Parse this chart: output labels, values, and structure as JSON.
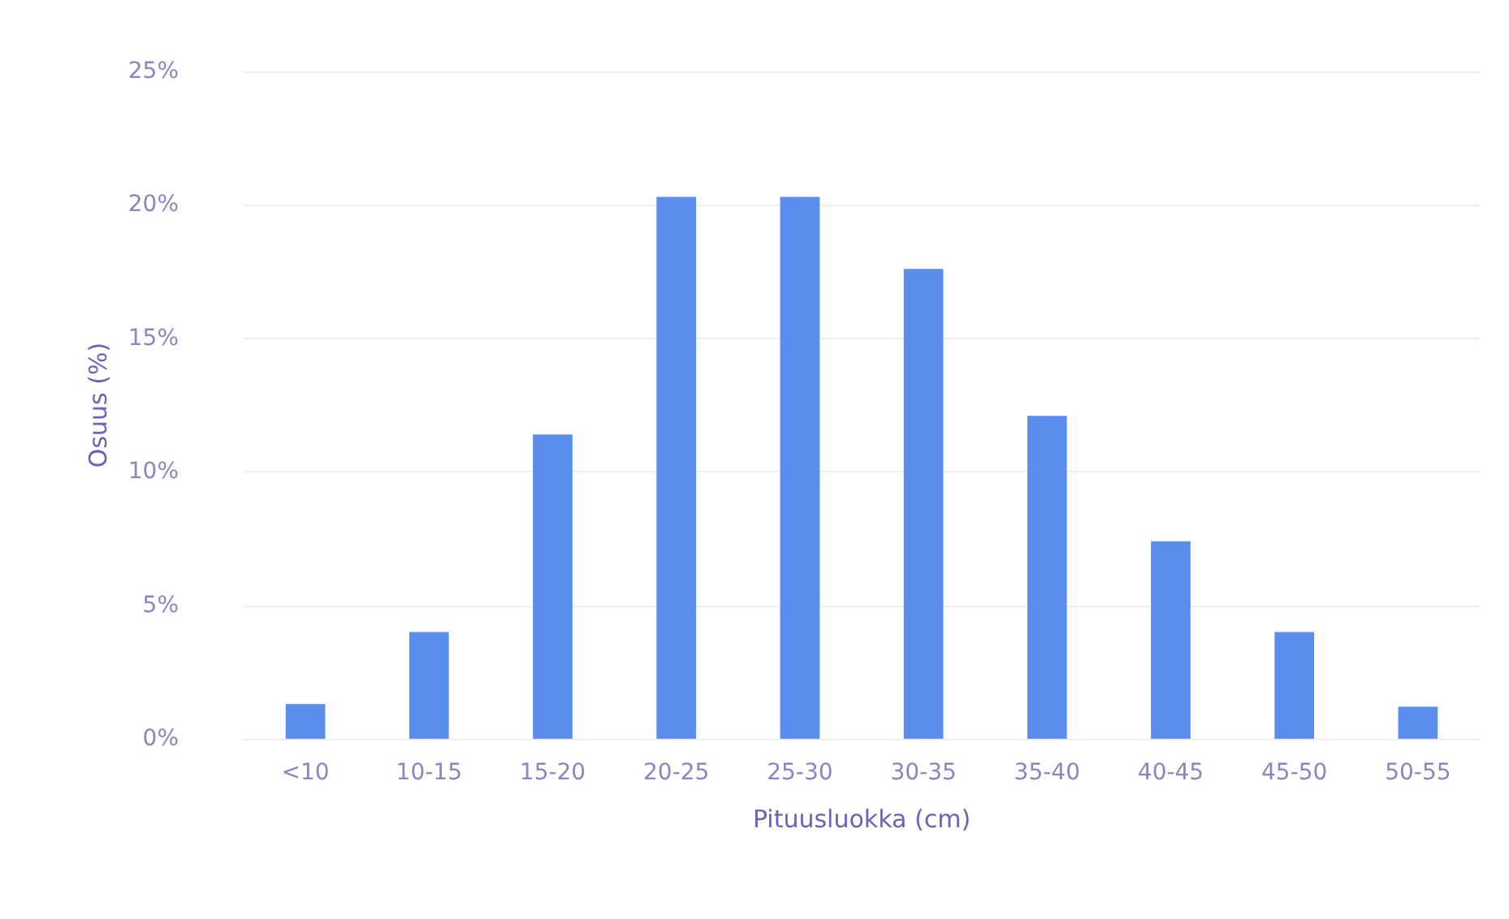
{
  "chart_data": {
    "type": "bar",
    "xlabel": "Pituusluokka (cm)",
    "ylabel": "Osuus (%)",
    "categories": [
      "<10",
      "10-15",
      "15-20",
      "20-25",
      "25-30",
      "30-35",
      "35-40",
      "40-45",
      "45-50",
      "50-55"
    ],
    "values": [
      1.3,
      4.0,
      11.4,
      20.3,
      20.3,
      17.6,
      12.1,
      7.4,
      4.0,
      1.2
    ],
    "color": "#5b8def",
    "ylim": [
      0,
      25
    ],
    "yticks": [
      {
        "value": 0,
        "label": "0%"
      },
      {
        "value": 5,
        "label": "5%"
      },
      {
        "value": 10,
        "label": "10%"
      },
      {
        "value": 15,
        "label": "15%"
      },
      {
        "value": 20,
        "label": "20%"
      },
      {
        "value": 25,
        "label": "25%"
      }
    ],
    "grid": "y"
  }
}
